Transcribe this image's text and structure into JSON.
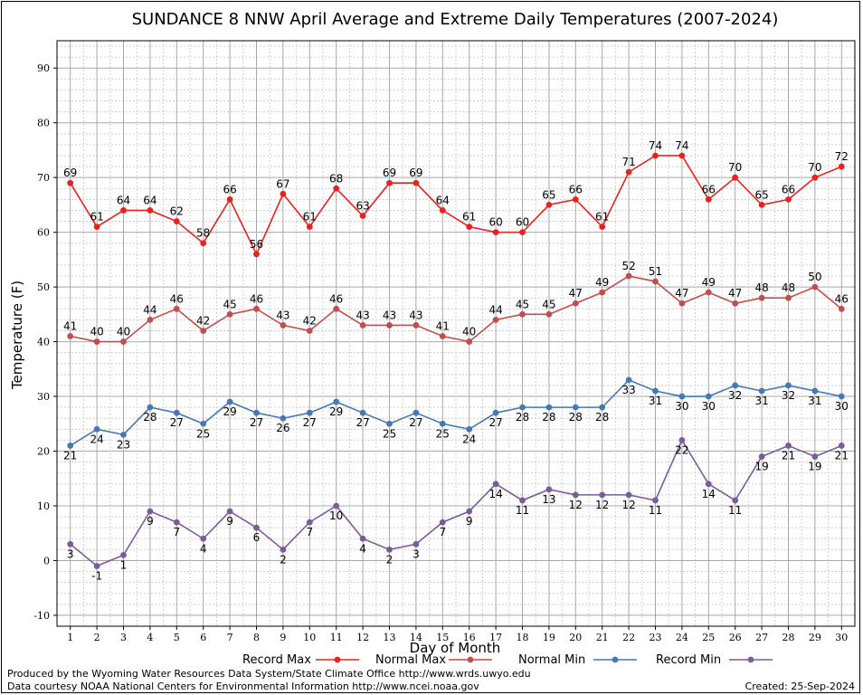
{
  "chart_data": {
    "type": "line",
    "title": "SUNDANCE 8 NNW April Average and Extreme Daily Temperatures (2007-2024)",
    "xlabel": "Day of Month",
    "ylabel": "Temperature (F)",
    "x": [
      1,
      2,
      3,
      4,
      5,
      6,
      7,
      8,
      9,
      10,
      11,
      12,
      13,
      14,
      15,
      16,
      17,
      18,
      19,
      20,
      21,
      22,
      23,
      24,
      25,
      26,
      27,
      28,
      29,
      30
    ],
    "xlim": [
      0.5,
      30.5
    ],
    "ylim": [
      -12,
      95
    ],
    "yticks": [
      -10,
      0,
      10,
      20,
      30,
      40,
      50,
      60,
      70,
      80,
      90
    ],
    "grid": true,
    "legend_position": "bottom",
    "series": [
      {
        "name": "Record Max",
        "color": "#e8221f",
        "values": [
          69,
          61,
          64,
          64,
          62,
          58,
          66,
          56,
          67,
          61,
          68,
          63,
          69,
          69,
          64,
          61,
          60,
          60,
          65,
          66,
          61,
          71,
          74,
          74,
          66,
          70,
          65,
          66,
          70,
          72
        ]
      },
      {
        "name": "Normal Max",
        "color": "#c14d4d",
        "values": [
          41,
          40,
          40,
          44,
          46,
          42,
          45,
          46,
          43,
          42,
          46,
          43,
          43,
          43,
          41,
          40,
          44,
          45,
          45,
          47,
          49,
          52,
          51,
          47,
          49,
          47,
          48,
          48,
          50,
          46
        ]
      },
      {
        "name": "Normal Min",
        "color": "#4479b5",
        "values": [
          21,
          24,
          23,
          28,
          27,
          25,
          29,
          27,
          26,
          27,
          29,
          27,
          25,
          27,
          25,
          24,
          27,
          28,
          28,
          28,
          28,
          33,
          31,
          30,
          30,
          32,
          31,
          32,
          31,
          30
        ]
      },
      {
        "name": "Record Min",
        "color": "#7b5b9a",
        "values": [
          3,
          -1,
          1,
          9,
          7,
          4,
          9,
          6,
          2,
          7,
          10,
          4,
          2,
          3,
          7,
          9,
          14,
          11,
          13,
          12,
          12,
          12,
          11,
          22,
          14,
          11,
          19,
          21,
          19,
          21
        ]
      }
    ],
    "label_positions": {
      "Record Max": "above",
      "Normal Max": "above",
      "Normal Min": "below",
      "Record Min": "below"
    }
  },
  "footer": {
    "produced_by": "Produced by the Wyoming Water Resources Data System/State Climate Office http://www.wrds.uwyo.edu",
    "courtesy": "Data courtesy NOAA National Centers for Environmental Information http://www.ncei.noaa.gov",
    "created": "Created:  25-Sep-2024"
  }
}
